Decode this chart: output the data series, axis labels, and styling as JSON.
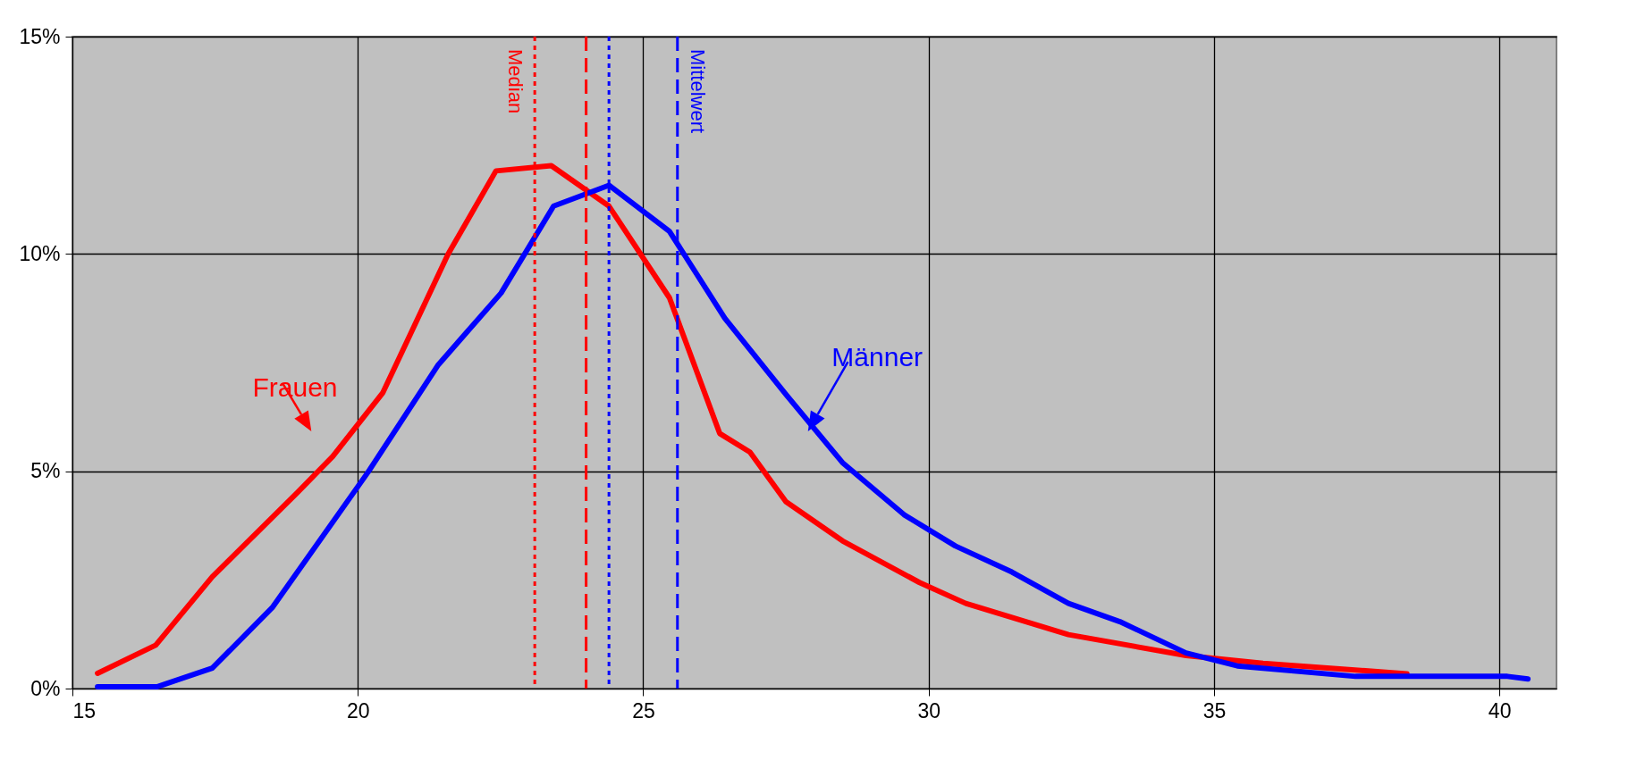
{
  "chart_data": {
    "type": "line",
    "series": [
      {
        "name": "Frauen",
        "color": "#ff0000",
        "x": [
          15.44,
          16.46,
          17.45,
          18.94,
          19.56,
          20.44,
          21.58,
          22.42,
          23.39,
          24.4,
          25.46,
          26.34,
          26.87,
          27.5,
          28.49,
          29.84,
          30.65,
          32.45,
          34.51,
          35.86,
          38.38
        ],
        "values": [
          0.35,
          1.0,
          2.57,
          4.51,
          5.34,
          6.81,
          9.99,
          11.91,
          12.03,
          11.1,
          8.99,
          5.87,
          5.44,
          4.3,
          3.4,
          2.44,
          1.96,
          1.24,
          0.76,
          0.58,
          0.34
        ]
      },
      {
        "name": "Männer",
        "color": "#0000ff",
        "x": [
          15.44,
          16.48,
          17.45,
          18.5,
          20.18,
          21.41,
          22.51,
          23.43,
          24.4,
          25.46,
          26.43,
          27.5,
          28.49,
          29.57,
          30.47,
          31.46,
          32.45,
          33.35,
          34.51,
          35.41,
          37.48,
          40.14,
          40.5
        ],
        "values": [
          0.04,
          0.04,
          0.47,
          1.86,
          4.98,
          7.45,
          9.1,
          11.1,
          11.58,
          10.52,
          8.52,
          6.77,
          5.2,
          4.0,
          3.28,
          2.68,
          1.96,
          1.54,
          0.82,
          0.52,
          0.28,
          0.28,
          0.22
        ]
      }
    ],
    "xlim": [
      15,
      41
    ],
    "xticks": [
      15,
      20,
      25,
      30,
      35,
      40
    ],
    "ylim": [
      0,
      15
    ],
    "yticks": [
      {
        "value": 0,
        "label": "0%"
      },
      {
        "value": 5,
        "label": "5%"
      },
      {
        "value": 10,
        "label": "10%"
      },
      {
        "value": 15,
        "label": "15%"
      }
    ],
    "grid": true,
    "ref_lines": [
      {
        "axis": "x",
        "value": 23.1,
        "label": "Median",
        "color": "#ff0000",
        "line_style": "dotted"
      },
      {
        "axis": "x",
        "value": 24.0,
        "label": null,
        "color": "#ff0000",
        "line_style": "dashed"
      },
      {
        "axis": "x",
        "value": 24.4,
        "label": null,
        "color": "#0000ff",
        "line_style": "dotted"
      },
      {
        "axis": "x",
        "value": 25.6,
        "label": "Mittelwert",
        "color": "#0000ff",
        "line_style": "dashed"
      }
    ]
  }
}
